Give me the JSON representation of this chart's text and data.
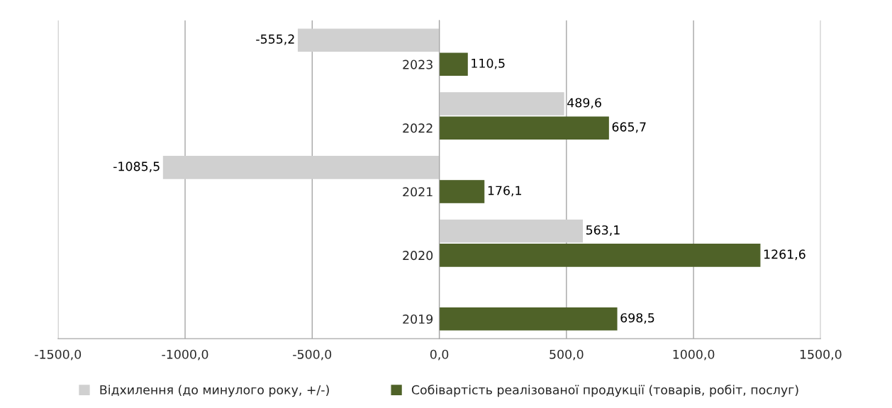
{
  "chart_data": {
    "type": "bar",
    "orientation": "horizontal",
    "categories": [
      "2023",
      "2022",
      "2021",
      "2020",
      "2019"
    ],
    "series": [
      {
        "name": "Відхилення (до минулого року, +/-)",
        "color": "#d0d0d0",
        "values": [
          -555.2,
          489.6,
          -1085.5,
          563.1,
          null
        ],
        "value_labels": [
          "-555,2",
          "489,6",
          "-1085,5",
          "563,1",
          null
        ]
      },
      {
        "name": "Собівартість реалізованої продукції (товарів, робіт, послуг)",
        "color": "#4f6228",
        "values": [
          110.5,
          665.7,
          176.1,
          1261.6,
          698.5
        ],
        "value_labels": [
          "110,5",
          "665,7",
          "176,1",
          "1261,6",
          "698,5"
        ]
      }
    ],
    "xlim": [
      -1500,
      1500
    ],
    "xticks": [
      {
        "value": -1500,
        "label": "-1500,0"
      },
      {
        "value": -1000,
        "label": "-1000,0"
      },
      {
        "value": -500,
        "label": "-500,0"
      },
      {
        "value": 0,
        "label": "0,0"
      },
      {
        "value": 500,
        "label": "500,0"
      },
      {
        "value": 1000,
        "label": "1000,0"
      },
      {
        "value": 1500,
        "label": "1500,0"
      }
    ],
    "grid": "x",
    "legend": "bottom"
  }
}
